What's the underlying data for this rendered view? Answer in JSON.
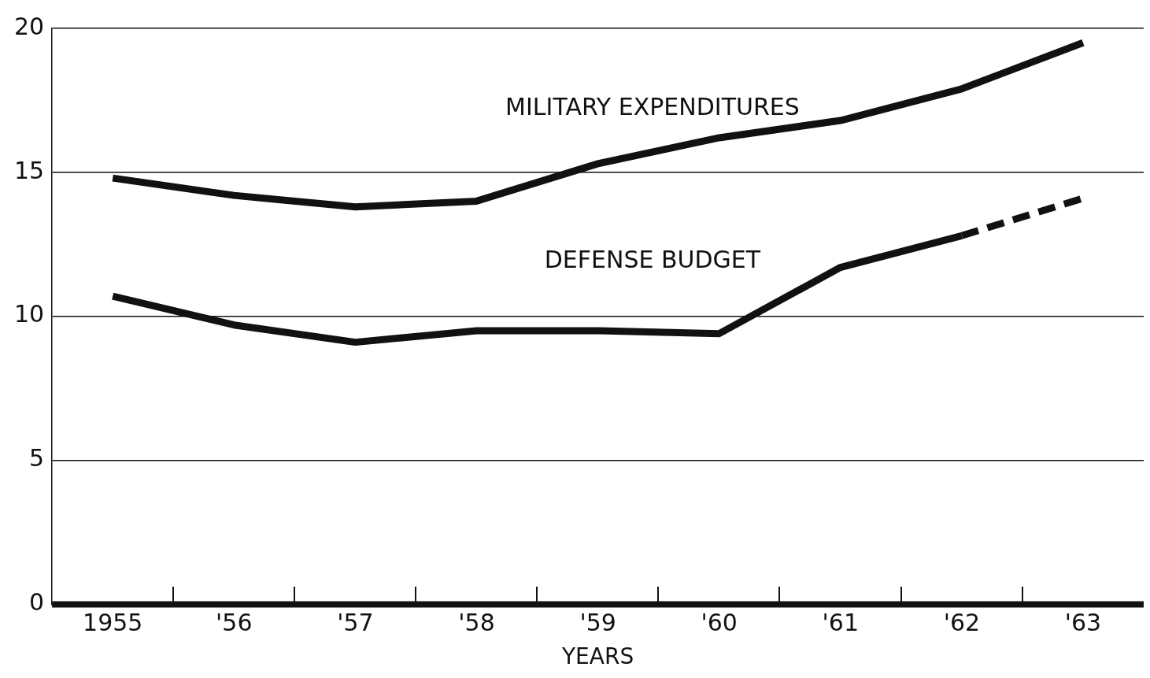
{
  "chart_data": {
    "type": "line",
    "xlabel": "YEARS",
    "categories": [
      "1955",
      "'56",
      "'57",
      "'58",
      "'59",
      "'60",
      "'61",
      "'62",
      "'63"
    ],
    "series": [
      {
        "name": "MILITARY EXPENDITURES",
        "color": "#111111",
        "values": [
          14.8,
          14.2,
          13.8,
          14.0,
          15.3,
          16.2,
          16.8,
          17.9,
          19.5
        ]
      },
      {
        "name": "DEFENSE BUDGET",
        "color": "#111111",
        "values": [
          10.7,
          9.7,
          9.1,
          9.5,
          9.5,
          9.4,
          11.7,
          12.8,
          null
        ]
      },
      {
        "color": "#111111",
        "line_style": "dashed",
        "values": [
          null,
          null,
          null,
          null,
          null,
          null,
          null,
          12.8,
          14.1
        ]
      }
    ],
    "ylim": [
      0,
      20
    ],
    "yticks": [
      0,
      5,
      10,
      15,
      20
    ],
    "grid": "y",
    "legend": false,
    "marker": "none",
    "line_style": "solid"
  }
}
